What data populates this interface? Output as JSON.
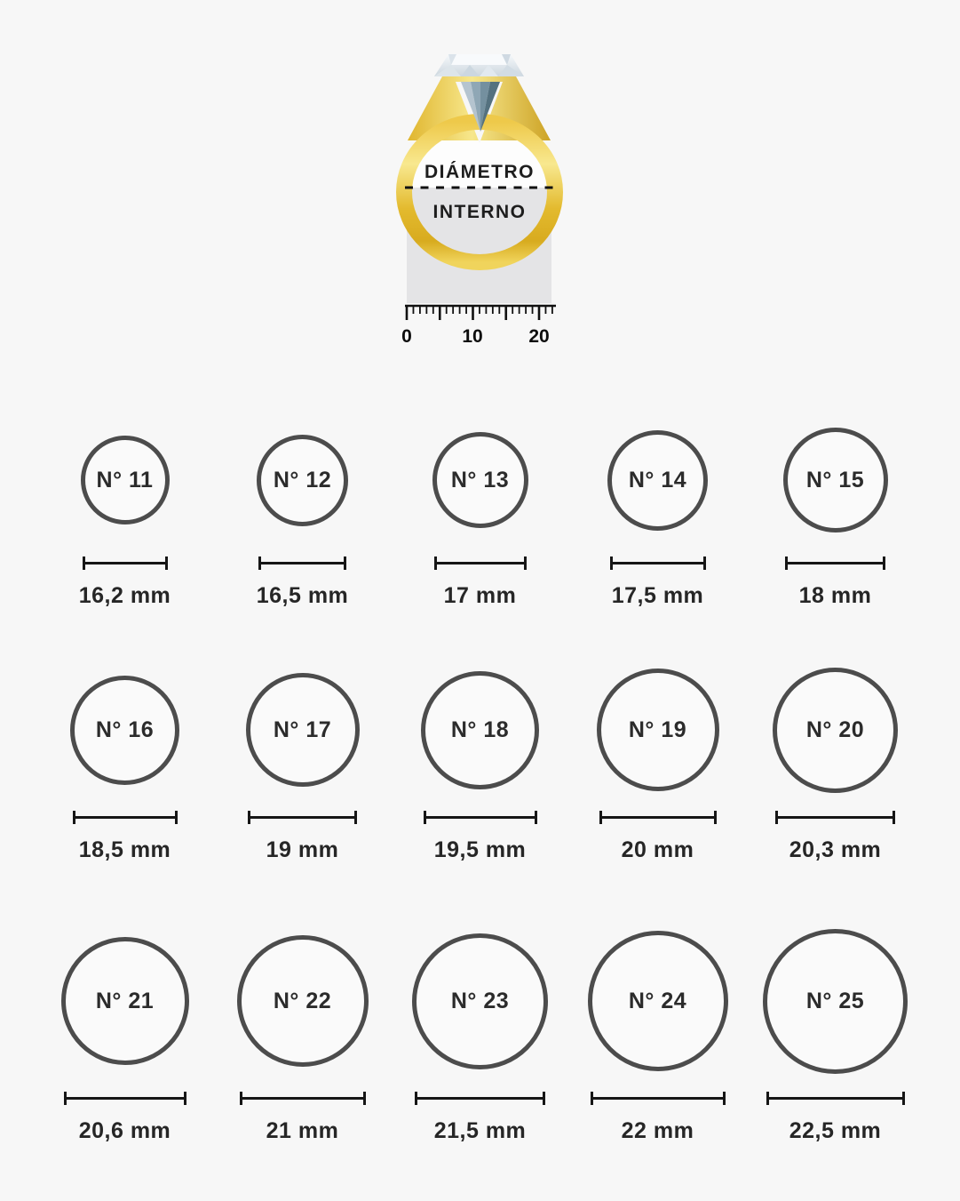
{
  "page": {
    "background": "#f7f7f7",
    "circle_border_color": "#4c4c4c",
    "text_color": "#262626",
    "measure_line_color": "#161616"
  },
  "ring_diagram": {
    "inner_label_top": "DIÁMETRO",
    "inner_label_bottom": "INTERNO",
    "ruler_labels": [
      "0",
      "10",
      "20"
    ],
    "gold_color": "#e8c43c",
    "diamond_color": "#dfe6ec",
    "band_rect_color": "#e4e4e6"
  },
  "size_chart": {
    "unit": "mm",
    "rows": [
      [
        {
          "label": "N° 11",
          "diameter_label": "16,2 mm",
          "diameter_mm": 16.2
        },
        {
          "label": "N° 12",
          "diameter_label": "16,5 mm",
          "diameter_mm": 16.5
        },
        {
          "label": "N° 13",
          "diameter_label": "17 mm",
          "diameter_mm": 17
        },
        {
          "label": "N° 14",
          "diameter_label": "17,5 mm",
          "diameter_mm": 17.5
        },
        {
          "label": "N° 15",
          "diameter_label": "18 mm",
          "diameter_mm": 18
        }
      ],
      [
        {
          "label": "N° 16",
          "diameter_label": "18,5 mm",
          "diameter_mm": 18.5
        },
        {
          "label": "N° 17",
          "diameter_label": "19 mm",
          "diameter_mm": 19
        },
        {
          "label": "N° 18",
          "diameter_label": "19,5 mm",
          "diameter_mm": 19.5
        },
        {
          "label": "N° 19",
          "diameter_label": "20 mm",
          "diameter_mm": 20
        },
        {
          "label": "N° 20",
          "diameter_label": "20,3 mm",
          "diameter_mm": 20.3
        }
      ],
      [
        {
          "label": "N° 21",
          "diameter_label": "20,6 mm",
          "diameter_mm": 20.6
        },
        {
          "label": "N° 22",
          "diameter_label": "21 mm",
          "diameter_mm": 21
        },
        {
          "label": "N° 23",
          "diameter_label": "21,5 mm",
          "diameter_mm": 21.5
        },
        {
          "label": "N° 24",
          "diameter_label": "22 mm",
          "diameter_mm": 22
        },
        {
          "label": "N° 25",
          "diameter_label": "22,5 mm",
          "diameter_mm": 22.5
        }
      ]
    ]
  }
}
